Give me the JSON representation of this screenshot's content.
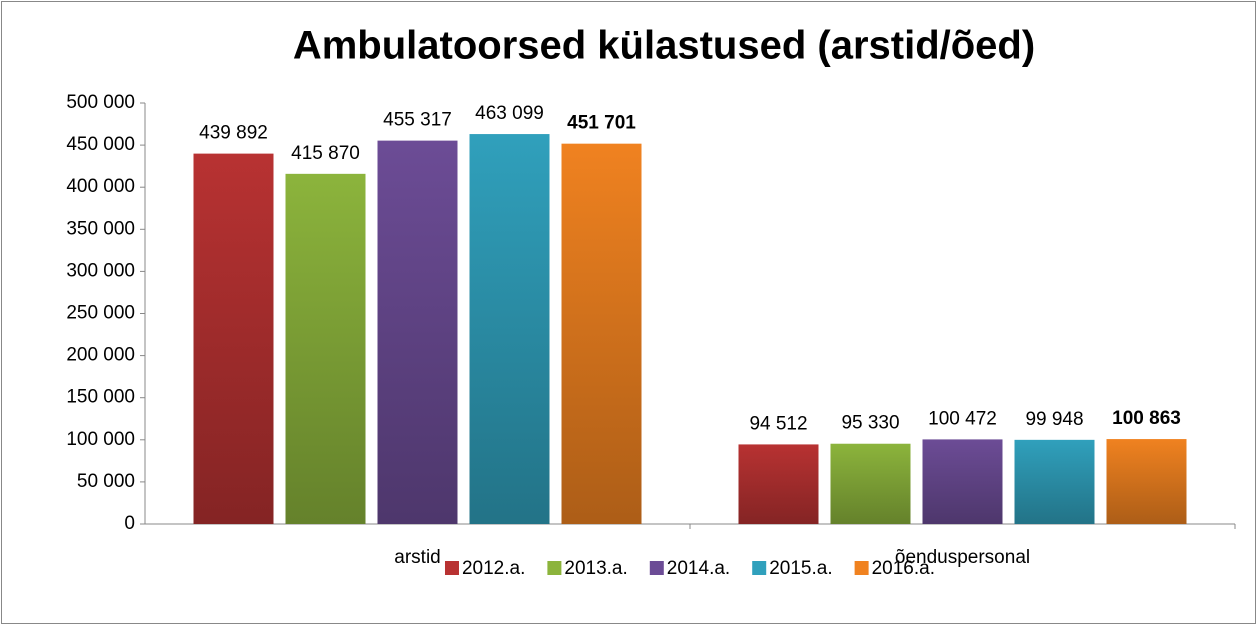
{
  "chart_data": {
    "type": "bar",
    "title": "Ambulatoorsed külastused (arstid/õed)",
    "categories": [
      "arstid",
      "õenduspersonal"
    ],
    "series": [
      {
        "name": "2012.a.",
        "color": "#b83232",
        "values": [
          439892,
          94512
        ],
        "value_labels": [
          "439 892",
          "94 512"
        ]
      },
      {
        "name": "2013.a.",
        "color": "#8cb43c",
        "values": [
          415870,
          95330
        ],
        "value_labels": [
          "415 870",
          "95 330"
        ]
      },
      {
        "name": "2014.a.",
        "color": "#6c4c96",
        "values": [
          455317,
          100472
        ],
        "value_labels": [
          "455 317",
          "100 472"
        ]
      },
      {
        "name": "2015.a.",
        "color": "#30a0bc",
        "values": [
          463099,
          99948
        ],
        "value_labels": [
          "463 099",
          "99 948"
        ]
      },
      {
        "name": "2016.a.",
        "color": "#f08220",
        "values": [
          451701,
          100863
        ],
        "value_labels": [
          "451 701",
          "100 863"
        ]
      }
    ],
    "ylim": [
      0,
      500000
    ],
    "yticks": [
      0,
      {
        "value": 50000,
        "label": "50 000"
      },
      {
        "value": 100000,
        "label": "100 000"
      },
      {
        "value": 150000,
        "label": "150 000"
      },
      {
        "value": 200000,
        "label": "200 000"
      },
      {
        "value": 250000,
        "label": "250 000"
      },
      {
        "value": 300000,
        "label": "300 000"
      },
      {
        "value": 350000,
        "label": "350 000"
      },
      {
        "value": 400000,
        "label": "400 000"
      },
      {
        "value": 450000,
        "label": "450 000"
      },
      {
        "value": 500000,
        "label": "500 000"
      }
    ],
    "grid": false,
    "legend": "bottom"
  }
}
